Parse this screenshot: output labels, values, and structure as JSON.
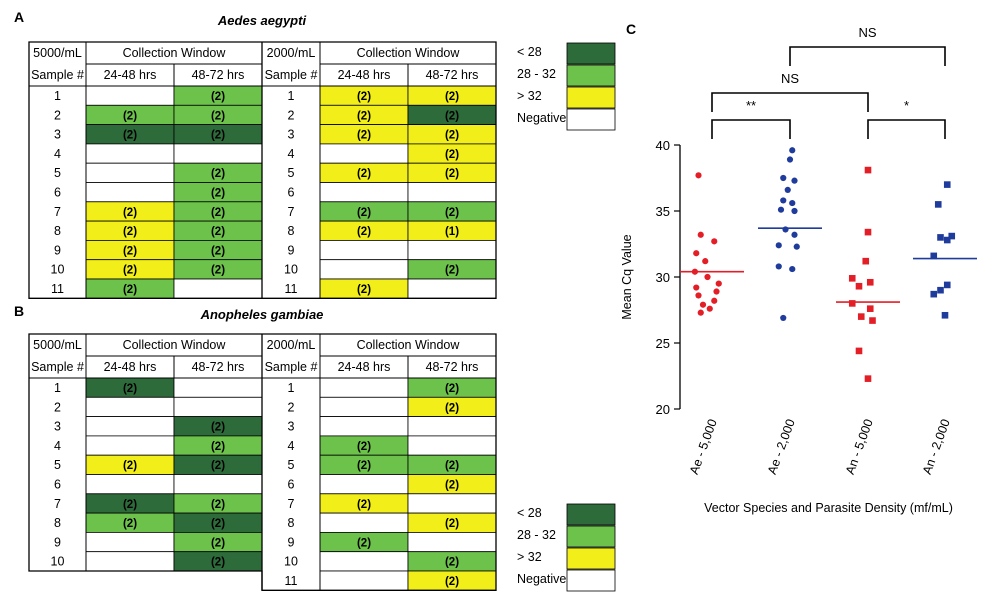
{
  "colors": {
    "dark_green": "#2e6b3a",
    "green": "#6cc24a",
    "yellow": "#f1ee1a",
    "white": "#ffffff",
    "red": "#e41e26",
    "blue": "#1f3c9c",
    "red_line": "#e41e26",
    "blue_line": "#1f3c9c"
  },
  "panelA": {
    "label": "A",
    "title": "Aedes aegypti",
    "left": {
      "density": "5000/mL",
      "window_header": "Collection Window",
      "sample_header": "Sample #",
      "col1": "24-48 hrs",
      "col2": "48-72 hrs",
      "rows": [
        {
          "s": "1",
          "c1": "W",
          "t1": "",
          "c2": "G",
          "t2": "(2)"
        },
        {
          "s": "2",
          "c1": "G",
          "t1": "(2)",
          "c2": "G",
          "t2": "(2)"
        },
        {
          "s": "3",
          "c1": "D",
          "t1": "(2)",
          "c2": "D",
          "t2": "(2)"
        },
        {
          "s": "4",
          "c1": "W",
          "t1": "",
          "c2": "W",
          "t2": ""
        },
        {
          "s": "5",
          "c1": "W",
          "t1": "",
          "c2": "G",
          "t2": "(2)"
        },
        {
          "s": "6",
          "c1": "W",
          "t1": "",
          "c2": "G",
          "t2": "(2)"
        },
        {
          "s": "7",
          "c1": "Y",
          "t1": "(2)",
          "c2": "G",
          "t2": "(2)"
        },
        {
          "s": "8",
          "c1": "Y",
          "t1": "(2)",
          "c2": "G",
          "t2": "(2)"
        },
        {
          "s": "9",
          "c1": "Y",
          "t1": "(2)",
          "c2": "G",
          "t2": "(2)"
        },
        {
          "s": "10",
          "c1": "Y",
          "t1": "(2)",
          "c2": "G",
          "t2": "(2)"
        },
        {
          "s": "11",
          "c1": "G",
          "t1": "(2)",
          "c2": "W",
          "t2": ""
        }
      ]
    },
    "right": {
      "density": "2000/mL",
      "window_header": "Collection Window",
      "sample_header": "Sample #",
      "col1": "24-48 hrs",
      "col2": "48-72 hrs",
      "rows": [
        {
          "s": "1",
          "c1": "Y",
          "t1": "(2)",
          "c2": "Y",
          "t2": "(2)"
        },
        {
          "s": "2",
          "c1": "Y",
          "t1": "(2)",
          "c2": "D",
          "t2": "(2)"
        },
        {
          "s": "3",
          "c1": "Y",
          "t1": "(2)",
          "c2": "Y",
          "t2": "(2)"
        },
        {
          "s": "4",
          "c1": "W",
          "t1": "",
          "c2": "Y",
          "t2": "(2)"
        },
        {
          "s": "5",
          "c1": "Y",
          "t1": "(2)",
          "c2": "Y",
          "t2": "(2)"
        },
        {
          "s": "6",
          "c1": "W",
          "t1": "",
          "c2": "W",
          "t2": ""
        },
        {
          "s": "7",
          "c1": "G",
          "t1": "(2)",
          "c2": "G",
          "t2": "(2)"
        },
        {
          "s": "8",
          "c1": "Y",
          "t1": "(2)",
          "c2": "Y",
          "t2": "(1)"
        },
        {
          "s": "9",
          "c1": "W",
          "t1": "",
          "c2": "W",
          "t2": ""
        },
        {
          "s": "10",
          "c1": "W",
          "t1": "",
          "c2": "G",
          "t2": "(2)"
        },
        {
          "s": "11",
          "c1": "Y",
          "t1": "(2)",
          "c2": "W",
          "t2": ""
        }
      ]
    },
    "legend": [
      {
        "label": "< 28",
        "c": "D"
      },
      {
        "label": "28 - 32",
        "c": "G"
      },
      {
        "label": "> 32",
        "c": "Y"
      },
      {
        "label": "Negative",
        "c": "W"
      }
    ]
  },
  "panelB": {
    "label": "B",
    "title": "Anopheles gambiae",
    "left": {
      "density": "5000/mL",
      "window_header": "Collection Window",
      "sample_header": "Sample #",
      "col1": "24-48 hrs",
      "col2": "48-72 hrs",
      "rows": [
        {
          "s": "1",
          "c1": "D",
          "t1": "(2)",
          "c2": "W",
          "t2": ""
        },
        {
          "s": "2",
          "c1": "W",
          "t1": "",
          "c2": "W",
          "t2": ""
        },
        {
          "s": "3",
          "c1": "W",
          "t1": "",
          "c2": "D",
          "t2": "(2)"
        },
        {
          "s": "4",
          "c1": "W",
          "t1": "",
          "c2": "G",
          "t2": "(2)"
        },
        {
          "s": "5",
          "c1": "Y",
          "t1": "(2)",
          "c2": "D",
          "t2": "(2)"
        },
        {
          "s": "6",
          "c1": "W",
          "t1": "",
          "c2": "W",
          "t2": ""
        },
        {
          "s": "7",
          "c1": "D",
          "t1": "(2)",
          "c2": "G",
          "t2": "(2)"
        },
        {
          "s": "8",
          "c1": "G",
          "t1": "(2)",
          "c2": "D",
          "t2": "(2)"
        },
        {
          "s": "9",
          "c1": "W",
          "t1": "",
          "c2": "G",
          "t2": "(2)"
        },
        {
          "s": "10",
          "c1": "W",
          "t1": "",
          "c2": "D",
          "t2": "(2)"
        }
      ]
    },
    "right": {
      "density": "2000/mL",
      "window_header": "Collection Window",
      "sample_header": "Sample #",
      "col1": "24-48 hrs",
      "col2": "48-72 hrs",
      "rows": [
        {
          "s": "1",
          "c1": "W",
          "t1": "",
          "c2": "G",
          "t2": "(2)"
        },
        {
          "s": "2",
          "c1": "W",
          "t1": "",
          "c2": "Y",
          "t2": "(2)"
        },
        {
          "s": "3",
          "c1": "W",
          "t1": "",
          "c2": "W",
          "t2": ""
        },
        {
          "s": "4",
          "c1": "G",
          "t1": "(2)",
          "c2": "W",
          "t2": ""
        },
        {
          "s": "5",
          "c1": "G",
          "t1": "(2)",
          "c2": "G",
          "t2": "(2)"
        },
        {
          "s": "6",
          "c1": "W",
          "t1": "",
          "c2": "Y",
          "t2": "(2)"
        },
        {
          "s": "7",
          "c1": "Y",
          "t1": "(2)",
          "c2": "W",
          "t2": ""
        },
        {
          "s": "8",
          "c1": "W",
          "t1": "",
          "c2": "Y",
          "t2": "(2)"
        },
        {
          "s": "9",
          "c1": "G",
          "t1": "(2)",
          "c2": "W",
          "t2": ""
        },
        {
          "s": "10",
          "c1": "W",
          "t1": "",
          "c2": "G",
          "t2": "(2)"
        },
        {
          "s": "11",
          "c1": "W",
          "t1": "",
          "c2": "Y",
          "t2": "(2)"
        }
      ]
    },
    "legend": [
      {
        "label": "< 28",
        "c": "D"
      },
      {
        "label": "28 - 32",
        "c": "G"
      },
      {
        "label": "> 32",
        "c": "Y"
      },
      {
        "label": "Negative",
        "c": "W"
      }
    ]
  },
  "panelC": {
    "label": "C",
    "significance": [
      {
        "from": 0,
        "to": 1,
        "label": "**"
      },
      {
        "from": 2,
        "to": 3,
        "label": "*"
      },
      {
        "from": 0,
        "to": 2,
        "label": "NS"
      },
      {
        "from": 1,
        "to": 3,
        "label": "NS"
      }
    ]
  },
  "chart_data": {
    "type": "scatter",
    "xlabel": "Vector Species and Parasite Density (mf/mL)",
    "ylabel": "Mean Cq Value",
    "ylim": [
      20,
      40
    ],
    "yticks": [
      20,
      25,
      30,
      35,
      40
    ],
    "categories": [
      "Ae - 5,000",
      "Ae - 2,000",
      "An - 5,000",
      "An - 2,000"
    ],
    "series": [
      {
        "category": "Ae - 5,000",
        "color": "#e41e26",
        "marker": "circle",
        "mean": 30.4,
        "points": [
          [
            -0.3,
            37.7
          ],
          [
            -0.25,
            33.2
          ],
          [
            0.05,
            32.7
          ],
          [
            -0.35,
            31.8
          ],
          [
            -0.15,
            31.2
          ],
          [
            -0.38,
            30.4
          ],
          [
            -0.1,
            30.0
          ],
          [
            0.15,
            29.5
          ],
          [
            -0.35,
            29.2
          ],
          [
            0.1,
            28.9
          ],
          [
            -0.3,
            28.6
          ],
          [
            0.05,
            28.2
          ],
          [
            -0.2,
            27.9
          ],
          [
            -0.25,
            27.3
          ],
          [
            -0.05,
            27.6
          ]
        ]
      },
      {
        "category": "Ae - 2,000",
        "color": "#1f3c9c",
        "marker": "circle",
        "mean": 33.7,
        "points": [
          [
            0.05,
            39.6
          ],
          [
            0.0,
            38.9
          ],
          [
            -0.15,
            37.5
          ],
          [
            0.1,
            37.3
          ],
          [
            -0.05,
            36.6
          ],
          [
            -0.15,
            35.8
          ],
          [
            0.05,
            35.6
          ],
          [
            -0.2,
            35.1
          ],
          [
            0.1,
            35.0
          ],
          [
            -0.1,
            33.6
          ],
          [
            0.1,
            33.2
          ],
          [
            -0.25,
            32.4
          ],
          [
            0.15,
            32.3
          ],
          [
            -0.25,
            30.8
          ],
          [
            0.05,
            30.6
          ],
          [
            -0.15,
            26.9
          ]
        ]
      },
      {
        "category": "An - 5,000",
        "color": "#e41e26",
        "marker": "square",
        "mean": 28.1,
        "points": [
          [
            0.0,
            38.1
          ],
          [
            0.0,
            33.4
          ],
          [
            -0.05,
            31.2
          ],
          [
            -0.35,
            29.9
          ],
          [
            0.05,
            29.6
          ],
          [
            -0.2,
            29.3
          ],
          [
            -0.35,
            28.0
          ],
          [
            0.05,
            27.6
          ],
          [
            -0.15,
            27.0
          ],
          [
            0.1,
            26.7
          ],
          [
            -0.2,
            24.4
          ],
          [
            0.0,
            22.3
          ]
        ]
      },
      {
        "category": "An - 2,000",
        "color": "#1f3c9c",
        "marker": "square",
        "mean": 31.4,
        "points": [
          [
            0.05,
            37.0
          ],
          [
            -0.15,
            35.5
          ],
          [
            0.15,
            33.1
          ],
          [
            -0.1,
            33.0
          ],
          [
            0.05,
            32.8
          ],
          [
            -0.25,
            31.6
          ],
          [
            0.05,
            29.4
          ],
          [
            -0.1,
            29.0
          ],
          [
            -0.25,
            28.7
          ],
          [
            0.0,
            27.1
          ]
        ]
      }
    ]
  }
}
